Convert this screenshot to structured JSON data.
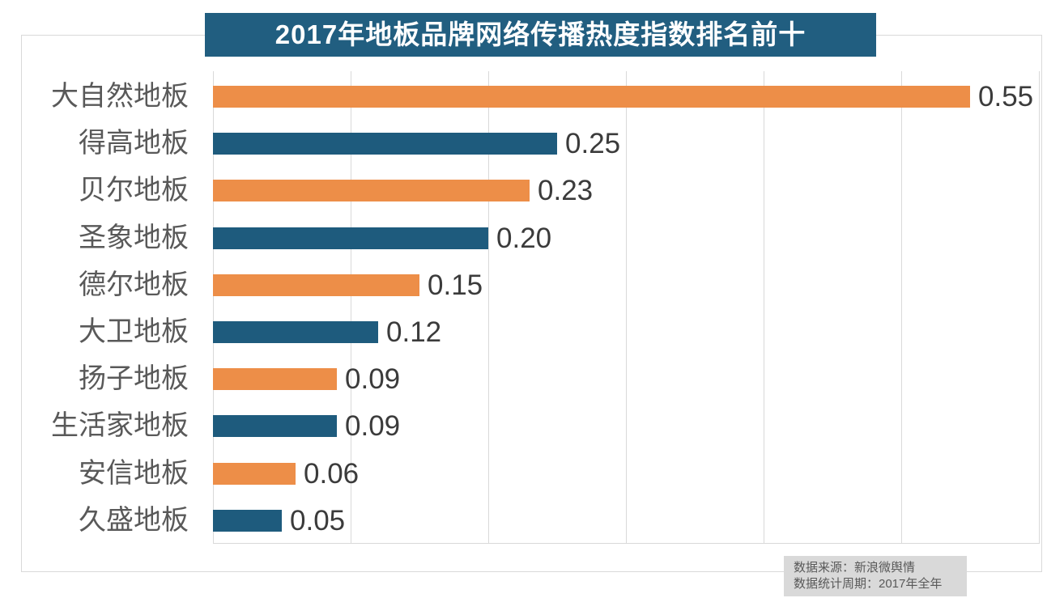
{
  "title": {
    "text": "2017年地板品牌网络传播热度指数排名前十",
    "bg_color": "#215e80",
    "text_color": "#ffffff"
  },
  "source_box": {
    "line1": "数据来源：新浪微舆情",
    "line2": "数据统计周期：2017年全年",
    "bg_color": "#d9d9d9",
    "text_color": "#595959"
  },
  "colors": {
    "orange": "#ed8e48",
    "blue": "#1e5b7d",
    "grid": "#d9d9d9",
    "category_label": "#595959",
    "value_label": "#3b3b3b",
    "frame_border": "#d9d9d9"
  },
  "chart_data": {
    "type": "bar",
    "orientation": "horizontal",
    "title": "2017年地板品牌网络传播热度指数排名前十",
    "xlabel": "",
    "ylabel": "",
    "categories": [
      "大自然地板",
      "得高地板",
      "贝尔地板",
      "圣象地板",
      "德尔地板",
      "大卫地板",
      "扬子地板",
      "生活家地板",
      "安信地板",
      "久盛地板"
    ],
    "values": [
      0.55,
      0.25,
      0.23,
      0.2,
      0.15,
      0.12,
      0.09,
      0.09,
      0.06,
      0.05
    ],
    "value_labels": [
      "0.55",
      "0.25",
      "0.23",
      "0.20",
      "0.15",
      "0.12",
      "0.09",
      "0.09",
      "0.06",
      "0.05"
    ],
    "bar_colors": [
      "#ed8e48",
      "#1e5b7d",
      "#ed8e48",
      "#1e5b7d",
      "#ed8e48",
      "#1e5b7d",
      "#ed8e48",
      "#1e5b7d",
      "#ed8e48",
      "#1e5b7d"
    ],
    "xlim": [
      0,
      0.6
    ],
    "gridline_interval": 0.1,
    "grid": true,
    "legend": false,
    "data_labels": "end-of-bar"
  }
}
